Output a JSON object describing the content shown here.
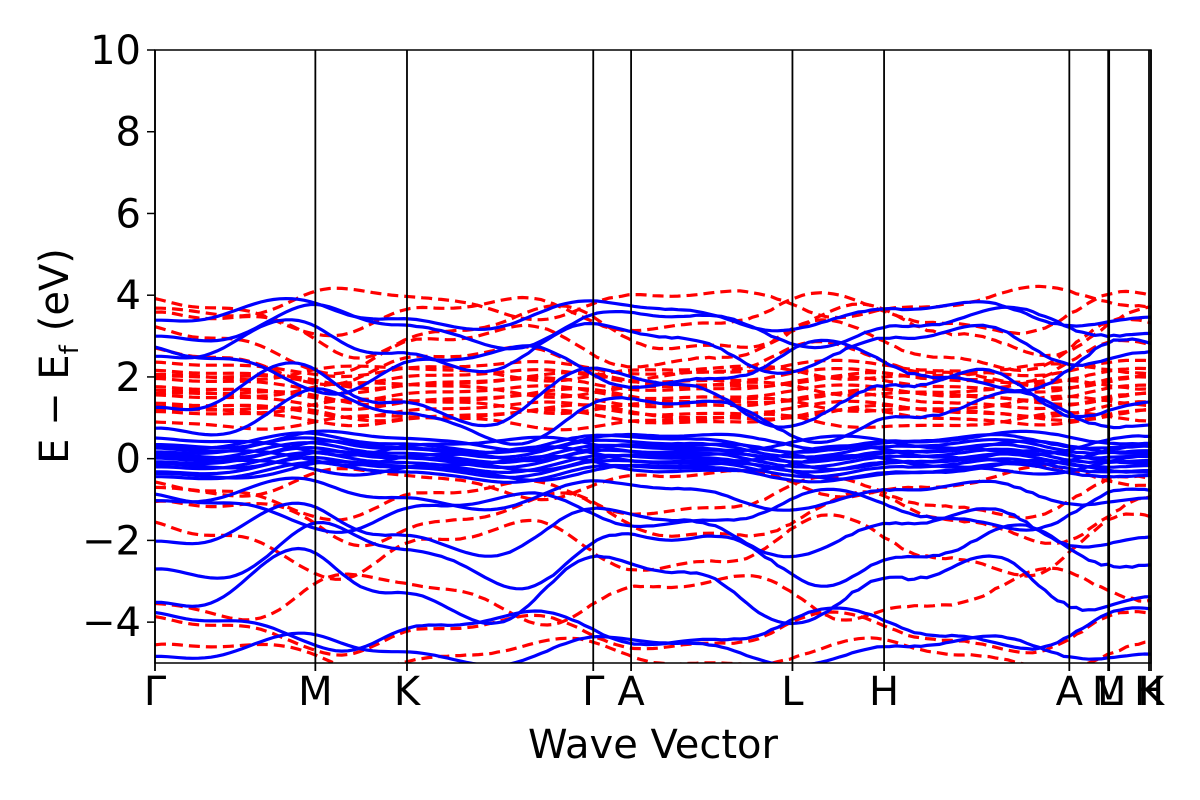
{
  "chart_data": {
    "type": "line",
    "xlabel": "Wave Vector",
    "ylabel_main": "E − E",
    "ylabel_sub": "f",
    "ylabel_unit": "(eV)",
    "ylim": [
      -5,
      10
    ],
    "y_ticks": [
      10,
      8,
      6,
      4,
      2,
      0,
      -2,
      -4
    ],
    "y_tick_labels": [
      "10",
      "8",
      "6",
      "4",
      "2",
      "0",
      "−2",
      "−4"
    ],
    "x_ticks": [
      {
        "label": "Γ",
        "x": 0.0
      },
      {
        "label": "M",
        "x": 0.161
      },
      {
        "label": "K",
        "x": 0.253
      },
      {
        "label": "Γ",
        "x": 0.44
      },
      {
        "label": "A",
        "x": 0.478
      },
      {
        "label": "L",
        "x": 0.64
      },
      {
        "label": "H",
        "x": 0.732
      },
      {
        "label": "A",
        "x": 0.918
      },
      {
        "label": "L",
        "x": 0.957
      },
      {
        "label": "M",
        "x": 0.958
      },
      {
        "label": "H",
        "x": 0.998
      },
      {
        "label": "K",
        "x": 1.0
      }
    ],
    "grid": false,
    "series": [
      {
        "style": "dashed",
        "color": "#ff0000"
      },
      {
        "style": "solid",
        "color": "#0000ff"
      }
    ]
  }
}
